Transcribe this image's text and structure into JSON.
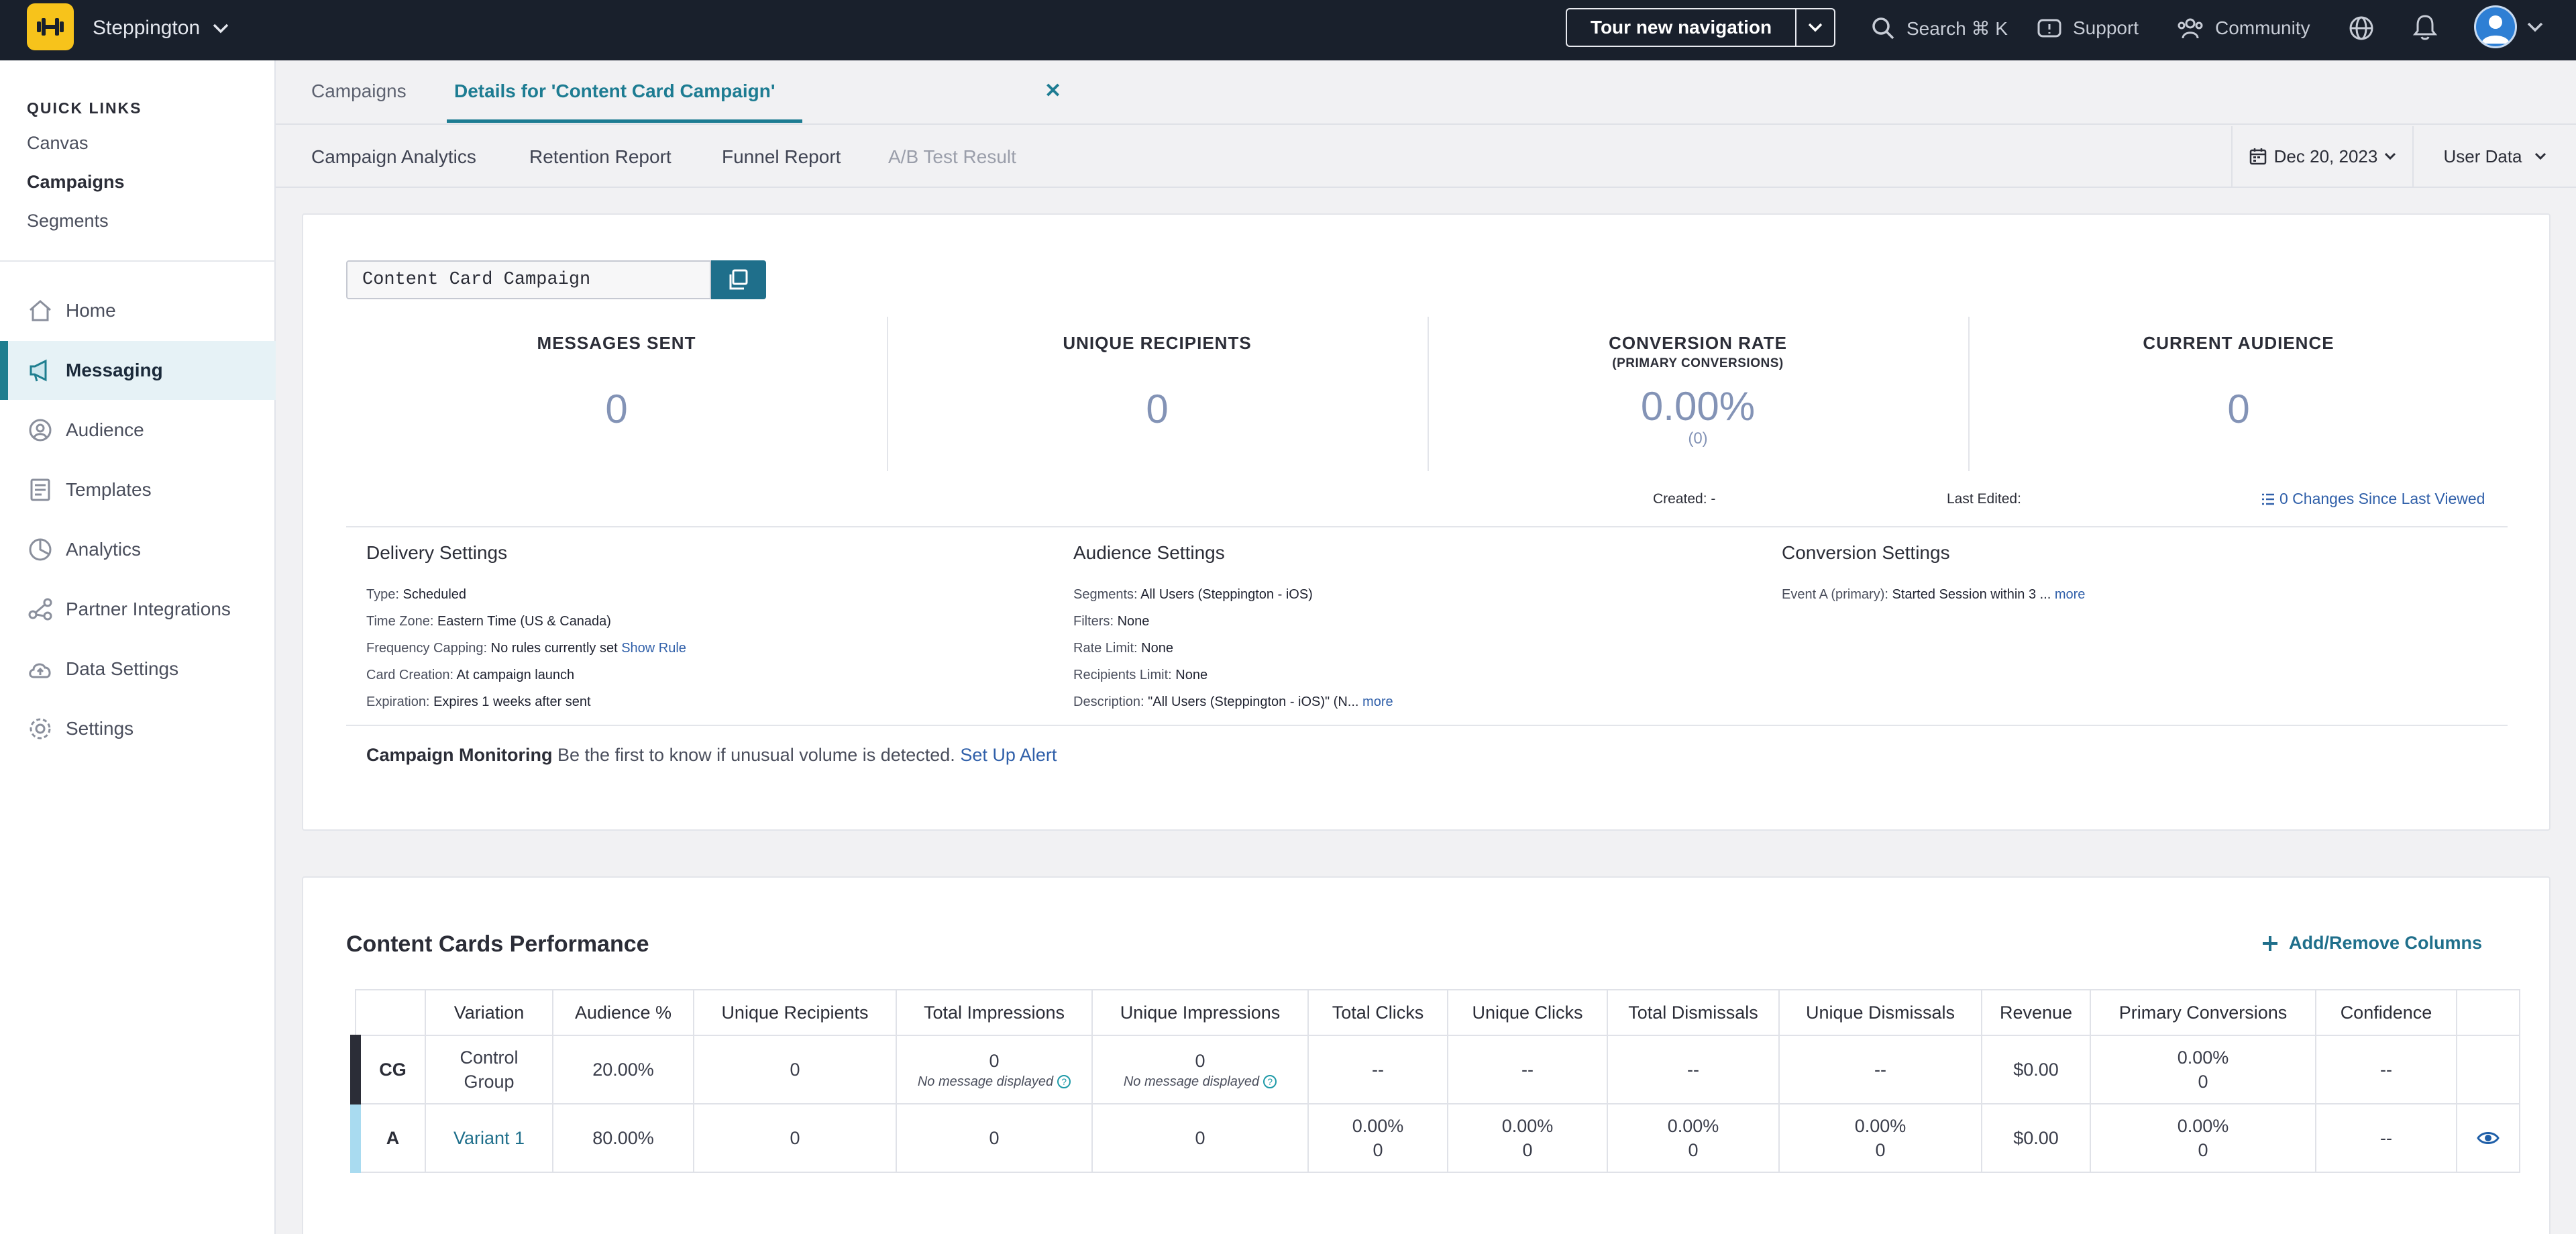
{
  "topbar": {
    "workspace": "Steppington",
    "tour_button": "Tour new navigation",
    "search": "Search ⌘ K",
    "support": "Support",
    "community": "Community"
  },
  "sidebar": {
    "quick_links_title": "QUICK LINKS",
    "quick_links": [
      "Canvas",
      "Campaigns",
      "Segments"
    ],
    "nav": [
      "Home",
      "Messaging",
      "Audience",
      "Templates",
      "Analytics",
      "Partner Integrations",
      "Data Settings",
      "Settings"
    ],
    "active_nav": "Messaging"
  },
  "tabs": {
    "campaigns": "Campaigns",
    "details": "Details for 'Content Card Campaign'",
    "close": "✕"
  },
  "subtabs": {
    "analytics": "Campaign Analytics",
    "retention": "Retention Report",
    "funnel": "Funnel Report",
    "ab": "A/B Test Result",
    "date": "Dec 20, 2023",
    "user_data": "User Data"
  },
  "summary": {
    "campaign_name": "Content Card Campaign",
    "metrics": {
      "messages_sent": {
        "title": "MESSAGES SENT",
        "value": "0"
      },
      "unique_recipients": {
        "title": "UNIQUE RECIPIENTS",
        "value": "0"
      },
      "conversion_rate": {
        "title": "CONVERSION RATE",
        "subtitle": "(PRIMARY CONVERSIONS)",
        "value": "0.00%",
        "count": "(0)"
      },
      "current_audience": {
        "title": "CURRENT AUDIENCE",
        "value": "0"
      }
    },
    "created_label": "Created:",
    "created_value": "-",
    "last_edited_label": "Last Edited:",
    "changes_link": "0 Changes Since Last Viewed"
  },
  "delivery": {
    "title": "Delivery Settings",
    "type_label": "Type:",
    "type_value": "Scheduled",
    "tz_label": "Time Zone:",
    "tz_value": "Eastern Time (US & Canada)",
    "freq_label": "Frequency Capping:",
    "freq_value": "No rules currently set",
    "freq_link": "Show Rule",
    "card_label": "Card Creation:",
    "card_value": "At campaign launch",
    "exp_label": "Expiration:",
    "exp_value": "Expires 1 weeks after sent"
  },
  "audience": {
    "title": "Audience Settings",
    "segments_label": "Segments:",
    "segments_value": "All Users (Steppington - iOS)",
    "filters_label": "Filters:",
    "filters_value": "None",
    "rate_label": "Rate Limit:",
    "rate_value": "None",
    "recip_label": "Recipients Limit:",
    "recip_value": "None",
    "desc_label": "Description:",
    "desc_value": "\"All Users (Steppington - iOS)\" (N...",
    "more": "more"
  },
  "conversion": {
    "title": "Conversion Settings",
    "event_label": "Event A (primary):",
    "event_value": "Started Session within 3 ...",
    "more": "more"
  },
  "monitoring": {
    "label": "Campaign Monitoring",
    "text": "Be the first to know if unusual volume is detected.",
    "link": "Set Up Alert"
  },
  "performance": {
    "title": "Content Cards Performance",
    "add_remove": "Add/Remove Columns",
    "headers": [
      "",
      "Variation",
      "Audience %",
      "Unique Recipients",
      "Total Impressions",
      "Unique Impressions",
      "Total Clicks",
      "Unique Clicks",
      "Total Dismissals",
      "Unique Dismissals",
      "Revenue",
      "Primary Conversions",
      "Confidence",
      ""
    ],
    "no_message": "No message displayed",
    "rows": [
      {
        "code": "CG",
        "variation_line1": "Control",
        "variation_line2": "Group",
        "audience_pct": "20.00%",
        "unique_recipients": "0",
        "total_impressions": "0",
        "unique_impressions": "0",
        "total_clicks": "--",
        "unique_clicks": "--",
        "total_dismissals": "--",
        "unique_dismissals": "--",
        "revenue": "$0.00",
        "conv_pct": "0.00%",
        "conv_count": "0",
        "confidence": "--"
      },
      {
        "code": "A",
        "variation": "Variant 1",
        "audience_pct": "80.00%",
        "unique_recipients": "0",
        "total_impressions": "0",
        "unique_impressions": "0",
        "total_clicks_pct": "0.00%",
        "total_clicks": "0",
        "unique_clicks_pct": "0.00%",
        "unique_clicks": "0",
        "total_dismissals_pct": "0.00%",
        "total_dismissals": "0",
        "unique_dismissals_pct": "0.00%",
        "unique_dismissals": "0",
        "revenue": "$0.00",
        "conv_pct": "0.00%",
        "conv_count": "0",
        "confidence": "--"
      }
    ]
  },
  "colors": {
    "accent": "#1d7c92",
    "link": "#2f5fa9",
    "topbar": "#19202c",
    "logo": "#f7c31b",
    "metric_value": "#8393b6"
  }
}
